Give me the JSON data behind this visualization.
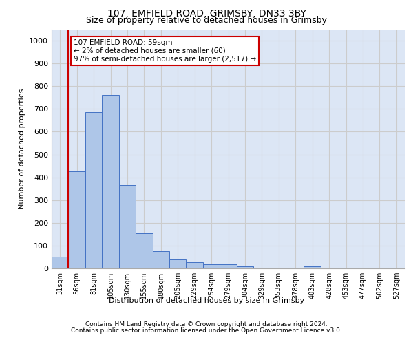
{
  "title1": "107, EMFIELD ROAD, GRIMSBY, DN33 3BY",
  "title2": "Size of property relative to detached houses in Grimsby",
  "xlabel": "Distribution of detached houses by size in Grimsby",
  "ylabel": "Number of detached properties",
  "categories": [
    "31sqm",
    "56sqm",
    "81sqm",
    "105sqm",
    "130sqm",
    "155sqm",
    "180sqm",
    "205sqm",
    "229sqm",
    "254sqm",
    "279sqm",
    "304sqm",
    "329sqm",
    "353sqm",
    "378sqm",
    "403sqm",
    "428sqm",
    "453sqm",
    "477sqm",
    "502sqm",
    "527sqm"
  ],
  "values": [
    52,
    425,
    685,
    760,
    365,
    155,
    75,
    40,
    27,
    18,
    17,
    10,
    0,
    0,
    0,
    9,
    0,
    0,
    0,
    0,
    0
  ],
  "bar_color": "#aec6e8",
  "bar_edge_color": "#4472c4",
  "vline_x_idx": 1,
  "vline_color": "#cc0000",
  "annotation_text": "107 EMFIELD ROAD: 59sqm\n← 2% of detached houses are smaller (60)\n97% of semi-detached houses are larger (2,517) →",
  "annotation_box_color": "#ffffff",
  "annotation_box_edge_color": "#cc0000",
  "ylim": [
    0,
    1050
  ],
  "yticks": [
    0,
    100,
    200,
    300,
    400,
    500,
    600,
    700,
    800,
    900,
    1000
  ],
  "grid_color": "#cccccc",
  "bg_color": "#dce6f5",
  "footer1": "Contains HM Land Registry data © Crown copyright and database right 2024.",
  "footer2": "Contains public sector information licensed under the Open Government Licence v3.0."
}
